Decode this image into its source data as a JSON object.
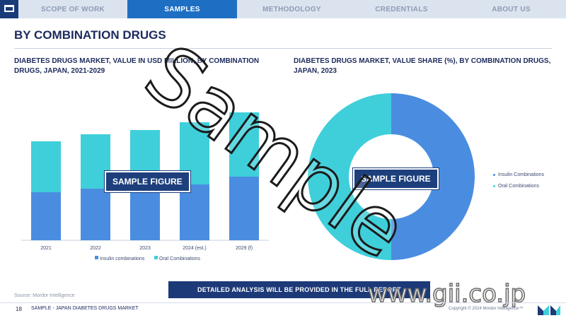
{
  "nav": {
    "tabs": [
      {
        "label": "SCOPE OF WORK"
      },
      {
        "label": "SAMPLES"
      },
      {
        "label": "METHODOLOGY"
      },
      {
        "label": "CREDENTIALS"
      },
      {
        "label": "ABOUT US"
      }
    ],
    "active_tab": "SAMPLES"
  },
  "page": {
    "title": "BY COMBINATION DRUGS",
    "watermark": "Sample",
    "sample_badge": "SAMPLE FIGURE",
    "source": "Source: Mordor Intelligence",
    "cta": "DETAILED ANALYSIS WILL BE PROVIDED IN THE FULL REPORT",
    "footer_page_number": "18",
    "footer_text": "SAMPLE - JAPAN DIABETES DRUGS MARKET",
    "gii_watermark": "www.gii.co.jp",
    "copyright": "Copyright © 2024 Mordor Intelligence™"
  },
  "colors": {
    "insulin": "#4a8de0",
    "oral": "#3ecfda",
    "navy": "#1d3a78",
    "nav_active": "#1e6fc4"
  },
  "chart_data": [
    {
      "type": "bar",
      "stacked": true,
      "title": "DIABETES DRUGS MARKET, VALUE IN USD MILLION, BY COMBINATION DRUGS, JAPAN, 2021-2029",
      "categories": [
        "2021",
        "2022",
        "2023",
        "2024 (est.)",
        "2029 (f)"
      ],
      "series": [
        {
          "name": "Insulin combinations",
          "color": "#4a8de0",
          "values": [
            68,
            73,
            78,
            79,
            90
          ]
        },
        {
          "name": "Oral Combinations",
          "color": "#3ecfda",
          "values": [
            72,
            77,
            78,
            88,
            91
          ]
        }
      ],
      "ylim": [
        0,
        185
      ],
      "grid": false,
      "legend": "bottom"
    },
    {
      "type": "pie",
      "donut": true,
      "title": "DIABETES DRUGS MARKET, VALUE SHARE (%), BY COMBINATION DRUGS, JAPAN, 2023",
      "slices": [
        {
          "name": "Insulin Combinations",
          "value": 50,
          "color": "#4a8de0"
        },
        {
          "name": "Oral Combinations",
          "value": 50,
          "color": "#3ecfda"
        }
      ],
      "legend": "right"
    }
  ]
}
